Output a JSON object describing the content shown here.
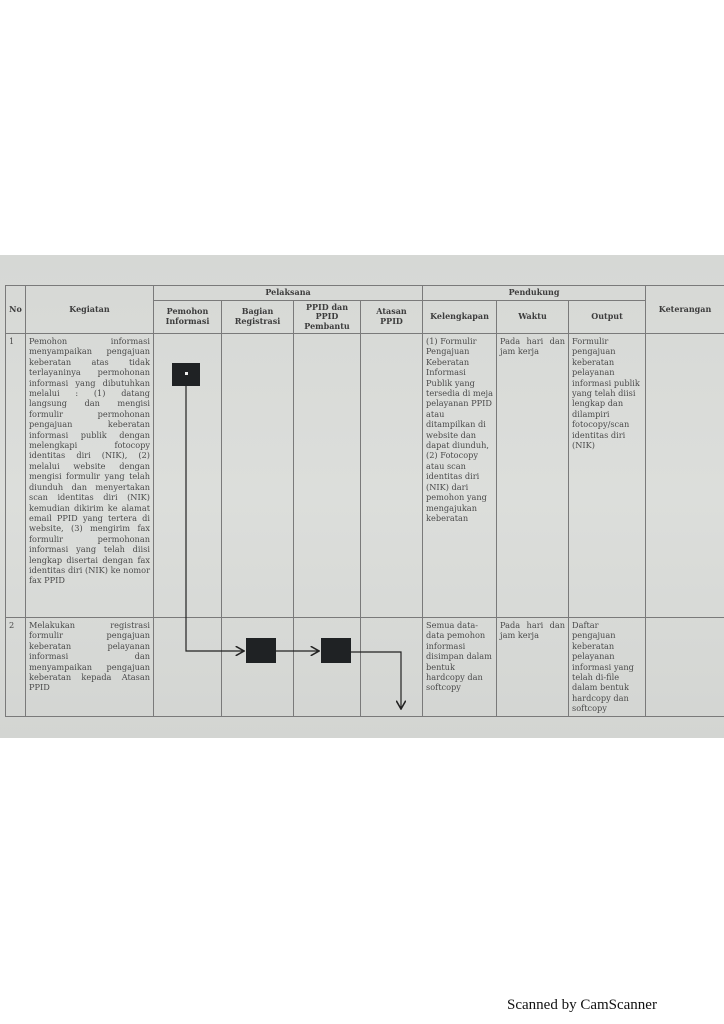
{
  "table": {
    "headers": {
      "no": "No",
      "kegiatan": "Kegiatan",
      "pelaksana": "Pelaksana",
      "pelaksana_cols": [
        "Pemohon Informasi",
        "Bagian Registrasi",
        "PPID dan PPID Pembantu",
        "Atasan PPID"
      ],
      "pendukung": "Pendukung",
      "pendukung_cols": [
        "Kelengkapan",
        "Waktu",
        "Output"
      ],
      "keterangan": "Keterangan"
    },
    "rows": [
      {
        "no": "1",
        "kegiatan": "Pemohon informasi menyampaikan pengajuan keberatan atas tidak terlayaninya permohonan informasi yang dibutuhkan melalui : (1) datang langsung dan mengisi formulir permohonan pengajuan keberatan informasi publik dengan melengkapi fotocopy identitas diri (NIK), (2) melalui website dengan mengisi formulir yang telah diunduh dan menyertakan scan identitas diri (NIK) kemudian dikirim ke alamat email PPID yang tertera di website, (3) mengirim fax formulir permohonan informasi yang telah diisi lengkap disertai dengan fax identitas diri (NIK) ke nomor fax PPID",
        "kelengkapan": "(1) Formulir Pengajuan Keberatan Informasi Publik yang tersedia di meja pelayanan PPID atau ditampilkan di website dan dapat diunduh, (2) Fotocopy atau scan identitas diri (NIK) dari pemohon yang mengajukan keberatan",
        "waktu": "Pada hari dan jam kerja",
        "output": "Formulir pengajuan keberatan pelayanan informasi publik yang telah diisi lengkap dan dilampiri fotocopy/scan identitas diri (NIK)",
        "keterangan": ""
      },
      {
        "no": "2",
        "kegiatan": "Melakukan registrasi formulir pengajuan keberatan pelayanan informasi dan menyampaikan pengajuan keberatan kepada Atasan PPID",
        "kelengkapan": "Semua data-data pemohon informasi disimpan dalam bentuk hardcopy dan softcopy",
        "waktu": "Pada hari dan jam kerja",
        "output": "Daftar pengajuan keberatan pelayanan informasi yang telah di-file dalam bentuk hardcopy dan softcopy",
        "keterangan": ""
      }
    ]
  },
  "footer": {
    "scanner_label": "Scanned by CamScanner"
  },
  "colors": {
    "paper": "#dcdedb",
    "ink": "#4a4a4a",
    "flow_box": "#1f2224"
  }
}
